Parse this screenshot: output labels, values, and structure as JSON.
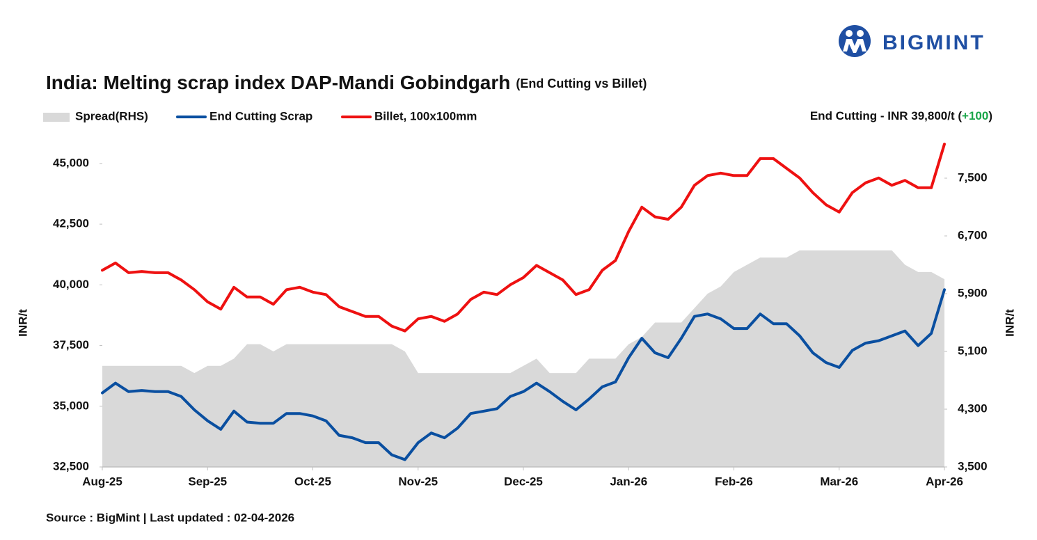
{
  "chart_data": {
    "type": "line",
    "brand": "BIGMINT",
    "title": "India: Melting scrap index DAP-Mandi Gobindgarh",
    "subtitle": "(End Cutting vs Billet)",
    "annotation_prefix": "End Cutting - INR 39,800/t (",
    "annotation_change": "+100",
    "annotation_suffix": ")",
    "annotation_change_color": "#1aa64a",
    "source": "Source : BigMint | Last updated : 02-04-2026",
    "ylabel": "INR/t",
    "y2label": "INR/t",
    "categories": [
      "Aug-25",
      null,
      null,
      null,
      null,
      null,
      null,
      null,
      "Sep-25",
      null,
      null,
      null,
      null,
      null,
      null,
      null,
      "Oct-25",
      null,
      null,
      null,
      null,
      null,
      null,
      null,
      "Nov-25",
      null,
      null,
      null,
      null,
      null,
      null,
      null,
      "Dec-25",
      null,
      null,
      null,
      null,
      null,
      null,
      null,
      "Jan-26",
      null,
      null,
      null,
      null,
      null,
      null,
      null,
      "Feb-26",
      null,
      null,
      null,
      null,
      null,
      null,
      null,
      "Mar-26",
      null,
      null,
      null,
      null,
      null,
      null,
      null,
      "Apr-26"
    ],
    "series": [
      {
        "name": "Spread(RHS)",
        "color": "#d9d9d9",
        "style": "area",
        "axis": "y2",
        "values": [
          4900,
          4900,
          4900,
          4900,
          4900,
          4900,
          4900,
          4800,
          4900,
          4900,
          5000,
          5200,
          5200,
          5100,
          5200,
          5200,
          5200,
          5200,
          5200,
          5200,
          5200,
          5200,
          5200,
          5100,
          4800,
          4800,
          4800,
          4800,
          4800,
          4800,
          4800,
          4800,
          4900,
          5000,
          4800,
          4800,
          4800,
          5000,
          5000,
          5000,
          5200,
          5300,
          5500,
          5500,
          5500,
          5700,
          5900,
          6000,
          6200,
          6300,
          6400,
          6400,
          6400,
          6500,
          6500,
          6500,
          6500,
          6500,
          6500,
          6500,
          6500,
          6300,
          6200,
          6200,
          6100
        ]
      },
      {
        "name": "End Cutting Scrap",
        "color": "#0a4fa0",
        "style": "line",
        "values": [
          35550,
          35950,
          35600,
          35650,
          35600,
          35600,
          35400,
          34850,
          34400,
          34050,
          34800,
          34350,
          34300,
          34300,
          34700,
          34700,
          34600,
          34400,
          33800,
          33700,
          33500,
          33500,
          33000,
          32800,
          33500,
          33900,
          33700,
          34100,
          34700,
          34800,
          34900,
          35400,
          35600,
          35950,
          35600,
          35200,
          34850,
          35300,
          35800,
          36000,
          37000,
          37800,
          37200,
          37000,
          37800,
          38700,
          38800,
          38600,
          38200,
          38200,
          38800,
          38400,
          38400,
          37900,
          37200,
          36800,
          36600,
          37300,
          37600,
          37700,
          37900,
          38100,
          37500,
          38000,
          39800
        ]
      },
      {
        "name": "Billet, 100x100mm",
        "color": "#ee1111",
        "style": "line",
        "values": [
          40600,
          40900,
          40500,
          40550,
          40500,
          40500,
          40200,
          39800,
          39300,
          39000,
          39900,
          39500,
          39500,
          39200,
          39800,
          39900,
          39700,
          39600,
          39100,
          38900,
          38700,
          38700,
          38300,
          38100,
          38600,
          38700,
          38500,
          38800,
          39400,
          39700,
          39600,
          40000,
          40300,
          40800,
          40500,
          40200,
          39600,
          39800,
          40600,
          41000,
          42200,
          43200,
          42800,
          42700,
          43200,
          44100,
          44500,
          44600,
          44500,
          44500,
          45200,
          45200,
          44800,
          44400,
          43800,
          43300,
          43000,
          43800,
          44200,
          44400,
          44100,
          44300,
          44000,
          44000,
          45800
        ]
      }
    ],
    "ylim": [
      32500,
      46000
    ],
    "yticks": [
      {
        "value": 32500,
        "label": "32,500"
      },
      {
        "value": 35000,
        "label": "35,000"
      },
      {
        "value": 37500,
        "label": "37,500"
      },
      {
        "value": 40000,
        "label": "40,000"
      },
      {
        "value": 42500,
        "label": "42,500"
      },
      {
        "value": 45000,
        "label": "45,000"
      }
    ],
    "y2lim": [
      3500,
      8040
    ],
    "y2ticks": [
      {
        "value": 3500,
        "label": "3,500"
      },
      {
        "value": 4300,
        "label": "4,300"
      },
      {
        "value": 5100,
        "label": "5,100"
      },
      {
        "value": 5900,
        "label": "5,900"
      },
      {
        "value": 6700,
        "label": "6,700"
      },
      {
        "value": 7500,
        "label": "7,500"
      }
    ],
    "grid": false
  }
}
